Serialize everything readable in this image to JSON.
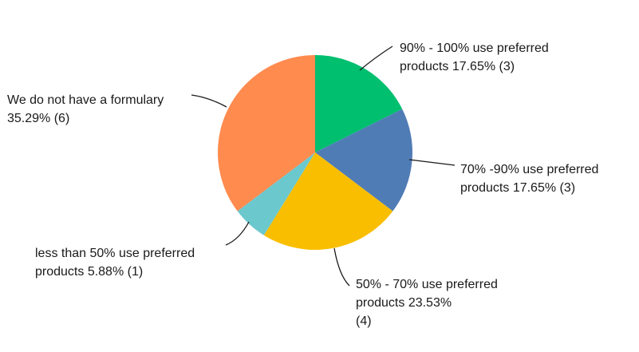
{
  "chart_data": {
    "type": "pie",
    "start_angle_deg": 0,
    "direction": "clockwise",
    "slices": [
      {
        "label": "90% - 100% use preferred products",
        "percent": "17.65%",
        "count": "(3)",
        "value": 3,
        "color": "#00BF6F",
        "label_lines": [
          "90% - 100% use preferred",
          "products 17.65% (3)"
        ]
      },
      {
        "label": "70% -90% use preferred products",
        "percent": "17.65%",
        "count": "(3)",
        "value": 3,
        "color": "#507CB6",
        "label_lines": [
          "70% -90% use preferred",
          "products 17.65% (3)"
        ]
      },
      {
        "label": "50% - 70% use preferred products",
        "percent": "23.53%",
        "count": "(4)",
        "value": 4,
        "color": "#F9BE00",
        "label_lines": [
          "50% - 70% use preferred",
          "products 23.53%",
          "(4)"
        ]
      },
      {
        "label": "less than 50% use preferred products",
        "percent": "5.88%",
        "count": "(1)",
        "value": 1,
        "color": "#6BC8CD",
        "label_lines": [
          "less than 50% use preferred",
          "products 5.88% (1)"
        ]
      },
      {
        "label": "We do not have a formulary",
        "percent": "35.29%",
        "count": "(6)",
        "value": 6,
        "color": "#FF8B4F",
        "label_lines": [
          "We do not have a formulary",
          "35.29% (6)"
        ]
      }
    ]
  }
}
